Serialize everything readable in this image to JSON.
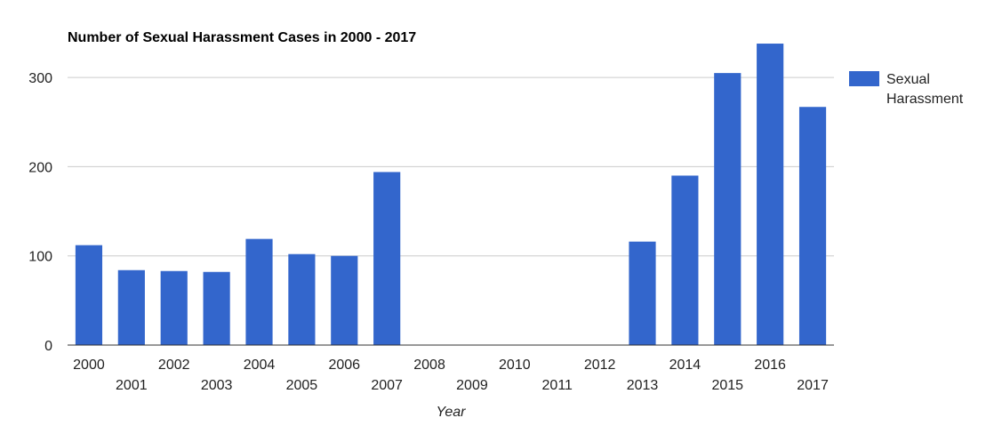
{
  "chart_data": {
    "type": "bar",
    "title": "Number of Sexual Harassment Cases in 2000 - 2017",
    "xlabel": "Year",
    "ylabel": "",
    "categories": [
      "2000",
      "2001",
      "2002",
      "2003",
      "2004",
      "2005",
      "2006",
      "2007",
      "2008",
      "2009",
      "2010",
      "2011",
      "2012",
      "2013",
      "2014",
      "2015",
      "2016",
      "2017"
    ],
    "series": [
      {
        "name": "Sexual Harassment",
        "color": "#3366cc",
        "values": [
          112,
          84,
          83,
          82,
          119,
          102,
          100,
          194,
          0,
          0,
          0,
          0,
          0,
          116,
          190,
          305,
          338,
          267
        ]
      }
    ],
    "ylim": [
      0,
      350
    ],
    "yticks": [
      0,
      100,
      200,
      300
    ],
    "grid": true,
    "legend": "right"
  }
}
